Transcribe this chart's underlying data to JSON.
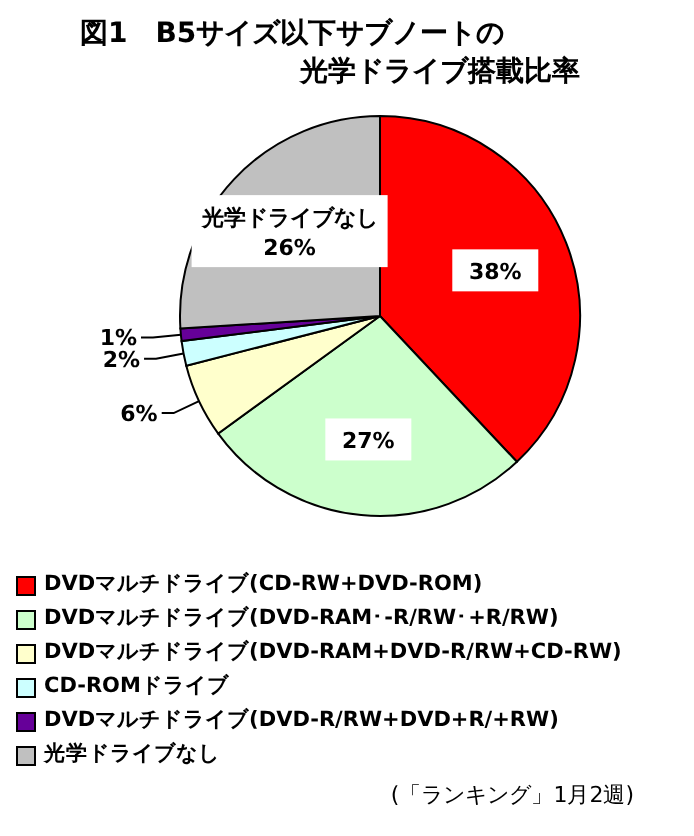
{
  "chart_data": {
    "type": "pie",
    "title": "図1　B5サイズ以下サブノートの",
    "subtitle": "光学ドライブ搭載比率",
    "categories": [
      "DVDマルチドライブ(CD-RW+DVD-ROM)",
      "DVDマルチドライブ(DVD-RAM･-R/RW･+R/RW)",
      "DVDマルチドライブ(DVD-RAM+DVD-R/RW+CD-RW)",
      "CD-ROMドライブ",
      "DVDマルチドライブ(DVD-R/RW+DVD+R/+RW)",
      "光学ドライブなし"
    ],
    "values": [
      38,
      27,
      6,
      2,
      1,
      26
    ],
    "colors": [
      "#ff0000",
      "#ccffcc",
      "#ffffcc",
      "#ccffff",
      "#660099",
      "#c0c0c0"
    ],
    "value_labels": [
      "38%",
      "27%",
      "6%",
      "2%",
      "1%",
      "光学ドライブなし 26%"
    ],
    "legend": "bottom",
    "annotations": [
      "(「ランキング」1月2週)"
    ]
  }
}
